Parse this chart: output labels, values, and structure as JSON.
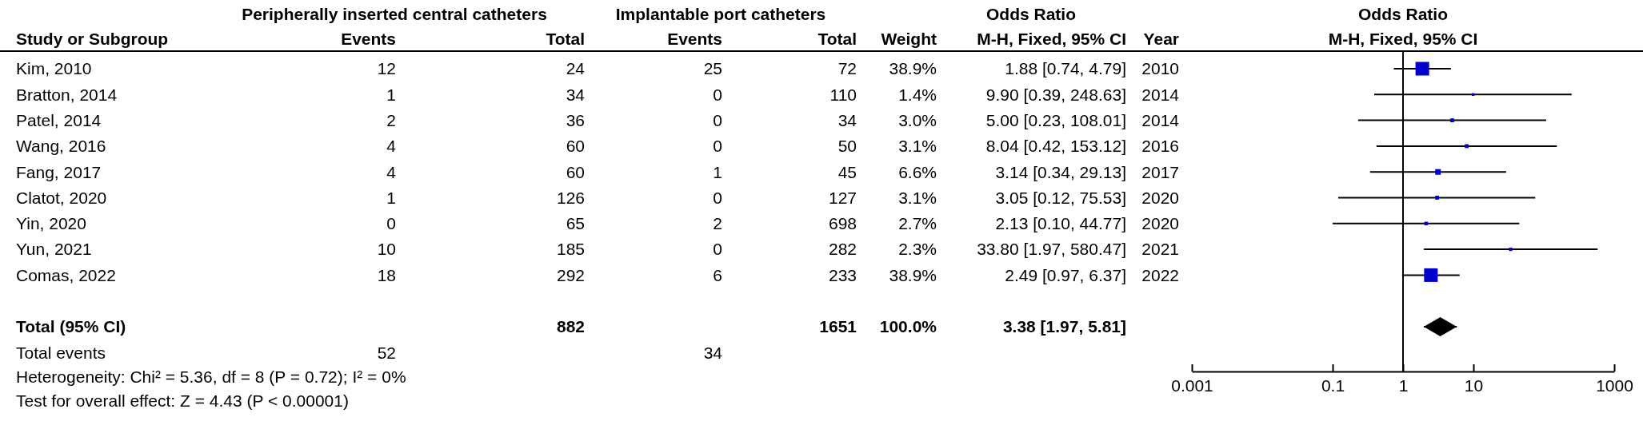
{
  "chart_data": [
    {
      "type": "other",
      "ylabel": "Study or Subgroup",
      "categories": [
        "Kim, 2010",
        "Bratton, 2014",
        "Patel, 2014",
        "Wang, 2016",
        "Fang, 2017",
        "Clatot, 2020",
        "Yin, 2020",
        "Yun, 2021",
        "Comas, 2022",
        null,
        "Total (95% CI)",
        "Total events"
      ],
      "data_labels": true,
      "series": [
        {
          "name": "Events",
          "values": [
            12,
            1,
            2,
            4,
            4,
            1,
            0,
            10,
            18,
            null,
            null,
            52
          ]
        },
        {
          "name": "Total",
          "values": [
            24,
            34,
            36,
            60,
            60,
            126,
            65,
            185,
            292,
            null,
            882,
            null
          ]
        },
        {
          "name": "Events",
          "values": [
            25,
            0,
            0,
            0,
            1,
            0,
            2,
            0,
            6,
            null,
            null,
            34
          ]
        },
        {
          "name": "Total",
          "values": [
            72,
            110,
            34,
            50,
            45,
            127,
            698,
            282,
            233,
            null,
            1651,
            null
          ]
        },
        {
          "name": "Weight",
          "values": [
            38.9,
            1.4,
            3.0,
            3.1,
            6.6,
            3.1,
            2.7,
            2.3,
            38.9,
            null,
            100.0,
            null
          ],
          "value_labels": [
            "38.9%",
            "1.4%",
            "3.0%",
            "3.1%",
            "6.6%",
            "3.1%",
            "2.7%",
            "2.3%",
            "38.9%",
            null,
            "100.0%",
            null
          ]
        },
        {
          "name": "M-H, Fixed, 95% CI",
          "values": [
            1.88,
            9.9,
            5.0,
            8.04,
            3.14,
            3.05,
            2.13,
            33.8,
            2.49,
            null,
            3.38,
            null
          ],
          "value_labels": [
            "1.88 [0.74, 4.79]",
            "9.90 [0.39, 248.63]",
            "5.00 [0.23, 108.01]",
            "8.04 [0.42, 153.12]",
            "3.14 [0.34, 29.13]",
            "3.05 [0.12, 75.53]",
            "2.13 [0.10, 44.77]",
            "33.80 [1.97, 580.47]",
            "2.49 [0.97, 6.37]",
            null,
            "3.38 [1.97, 5.81]",
            null
          ]
        },
        {
          "name": "Year",
          "values": [
            2010,
            2014,
            2014,
            2016,
            2017,
            2020,
            2020,
            2021,
            2022,
            null,
            null,
            null
          ]
        }
      ],
      "annotations": [
        "Peripherally inserted central catheters",
        "Implantable port catheters",
        "Odds Ratio",
        "Heterogeneity: Chi² = 5.36, df = 8 (P = 0.72); I² = 0%",
        "Test for overall effect: Z = 4.43 (P < 0.00001)"
      ]
    },
    {
      "type": "scatter",
      "title": "Odds Ratio",
      "subtitle": "M-H, Fixed, 95% CI",
      "categories": [
        null,
        null,
        null,
        null,
        null,
        null,
        null,
        null,
        null,
        null,
        null,
        null
      ],
      "orientation": "horizontal",
      "log": "x",
      "xlim": [
        0.001,
        1000
      ],
      "xticks": [
        0.001,
        0.1,
        1,
        10,
        1000
      ],
      "tick_labels": "x",
      "ref_lines": [
        {
          "axis": "x",
          "value": 1,
          "color": "#000000"
        }
      ],
      "series": [
        {
          "type": "bubble",
          "marker": "square",
          "color": "#0000cc",
          "values": [
            1.88,
            9.9,
            5.0,
            8.04,
            3.14,
            3.05,
            2.13,
            33.8,
            2.49,
            null,
            null,
            null
          ],
          "errors": [
            [
              0.74,
              4.79
            ],
            [
              0.39,
              248.63
            ],
            [
              0.23,
              108.01
            ],
            [
              0.42,
              153.12
            ],
            [
              0.34,
              29.13
            ],
            [
              0.12,
              75.53
            ],
            [
              0.1,
              44.77
            ],
            [
              1.97,
              580.47
            ],
            [
              0.97,
              6.37
            ],
            null,
            null,
            null
          ],
          "sizes": [
            1,
            0.04,
            0.08,
            0.08,
            0.17,
            0.08,
            0.07,
            0.06,
            1,
            null,
            null,
            null
          ]
        },
        {
          "type": "scatter",
          "marker": "diamond",
          "color": "#000000",
          "values": [
            null,
            null,
            null,
            null,
            null,
            null,
            null,
            null,
            null,
            null,
            3.38,
            null
          ],
          "errors": [
            null,
            null,
            null,
            null,
            null,
            null,
            null,
            null,
            null,
            null,
            [
              1.97,
              5.81
            ],
            null
          ]
        }
      ]
    }
  ]
}
